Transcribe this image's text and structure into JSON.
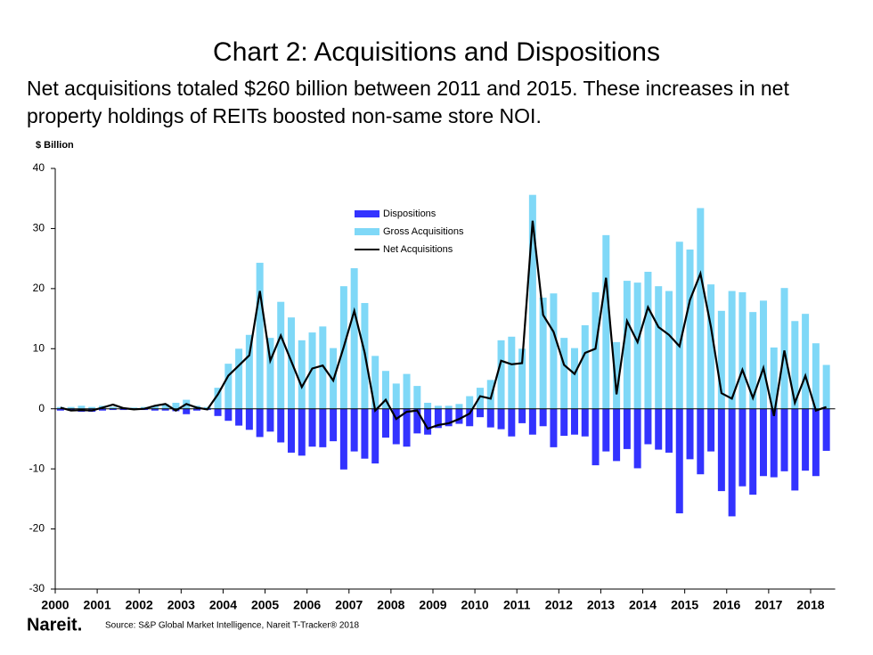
{
  "chart_data": {
    "type": "bar",
    "title": "Chart 2: Acquisitions and Dispositions",
    "subtitle": [
      "Net acquisitions totaled $260 billion between 2011 and 2015. These increases in net",
      "property holdings of REITs boosted non-same store NOI."
    ],
    "y_label": "$ Billion",
    "categories": [
      "2000",
      null,
      null,
      null,
      "2001",
      null,
      null,
      null,
      "2002",
      null,
      null,
      null,
      "2003",
      null,
      null,
      null,
      "2004",
      null,
      null,
      null,
      "2005",
      null,
      null,
      null,
      "2006",
      null,
      null,
      null,
      "2007",
      null,
      null,
      null,
      "2008",
      null,
      null,
      null,
      "2009",
      null,
      null,
      null,
      "2010",
      null,
      null,
      null,
      "2011",
      null,
      null,
      null,
      "2012",
      null,
      null,
      null,
      "2013",
      null,
      null,
      null,
      "2014",
      null,
      null,
      null,
      "2015",
      null,
      null,
      null,
      "2016",
      null,
      null,
      null,
      "2017",
      null,
      null,
      null,
      "2018",
      null
    ],
    "series": [
      {
        "name": "Dispositions",
        "color": "#3333ff",
        "kind": "bar",
        "values": [
          -0.3,
          -0.3,
          -0.5,
          -0.5,
          -0.3,
          -0.2,
          -0.2,
          -0.1,
          -0.2,
          -0.3,
          -0.3,
          -0.4,
          -0.9,
          -0.3,
          -0.2,
          -1.2,
          -2,
          -2.8,
          -3.5,
          -4.7,
          -3.8,
          -5.6,
          -7.3,
          -7.8,
          -6.3,
          -6.4,
          -5.4,
          -10.1,
          -7.1,
          -8.3,
          -9.1,
          -4.8,
          -5.9,
          -6.3,
          -4.1,
          -4.3,
          -3.2,
          -2.9,
          -2.5,
          -2.9,
          -1.4,
          -3.1,
          -3.4,
          -4.6,
          -2.4,
          -4.3,
          -2.9,
          -6.4,
          -4.5,
          -4.3,
          -4.6,
          -9.4,
          -7.1,
          -8.7,
          -6.7,
          -9.9,
          -5.9,
          -6.8,
          -7.3,
          -17.4,
          -8.4,
          -10.9,
          -7.1,
          -13.7,
          -17.9,
          -12.9,
          -14.3,
          -11.2,
          -11.4,
          -10.4,
          -13.6,
          -10.3,
          -11.2,
          -7
        ]
      },
      {
        "name": "Gross Acquisitions",
        "color": "#7fd8f7",
        "kind": "bar",
        "values": [
          0.3,
          0.3,
          0.5,
          0.3,
          0.5,
          0.3,
          0.2,
          0.2,
          0.3,
          0.5,
          0.8,
          1.0,
          1.5,
          0.5,
          0.3,
          3.5,
          7.5,
          10,
          12.3,
          24.3,
          11.8,
          17.8,
          15.2,
          11.4,
          12.7,
          13.7,
          10.1,
          20.4,
          23.4,
          17.6,
          8.8,
          6.3,
          4.2,
          5.8,
          3.8,
          1.0,
          0.5,
          0.5,
          0.8,
          2.1,
          3.5,
          4.8,
          11.4,
          12,
          10,
          35.6,
          18.5,
          19.2,
          11.8,
          10.1,
          13.9,
          19.4,
          28.9,
          11.1,
          21.3,
          21,
          22.8,
          20.4,
          19.6,
          27.8,
          26.5,
          33.4,
          20.7,
          16.3,
          19.6,
          19.4,
          16.1,
          18,
          10.2,
          20.1,
          14.6,
          15.8,
          10.9,
          7.3
        ]
      },
      {
        "name": "Net Acquisitions",
        "color": "#000000",
        "kind": "line",
        "values": [
          0.2,
          -0.3,
          -0.2,
          -0.3,
          0.2,
          0.7,
          0.1,
          -0.1,
          0,
          0.5,
          0.8,
          -0.3,
          0.8,
          0.2,
          -0.1,
          2.4,
          5.5,
          7.2,
          8.9,
          19.6,
          8,
          12.2,
          7.9,
          3.6,
          6.7,
          7.2,
          4.7,
          10.3,
          16.3,
          9.3,
          -0.3,
          1.5,
          -1.7,
          -0.5,
          -0.3,
          -3.3,
          -2.7,
          -2.4,
          -1.7,
          -0.8,
          2.1,
          1.7,
          8,
          7.4,
          7.6,
          31.3,
          15.6,
          12.8,
          7.3,
          5.8,
          9.3,
          10,
          21.8,
          2.4,
          14.6,
          11.1,
          16.9,
          13.6,
          12.3,
          10.4,
          18.1,
          22.5,
          13.6,
          2.6,
          1.7,
          6.5,
          1.8,
          6.8,
          -1.2,
          9.7,
          1,
          5.5,
          -0.3,
          0.3
        ]
      }
    ],
    "ylim": [
      -30,
      40
    ],
    "yticks": [
      -30,
      -20,
      -10,
      0,
      10,
      20,
      30,
      40
    ],
    "legend": "top-center",
    "logo": "Nareit.",
    "source": "Source: S&P Global Market Intelligence, Nareit T-Tracker® 2018"
  }
}
